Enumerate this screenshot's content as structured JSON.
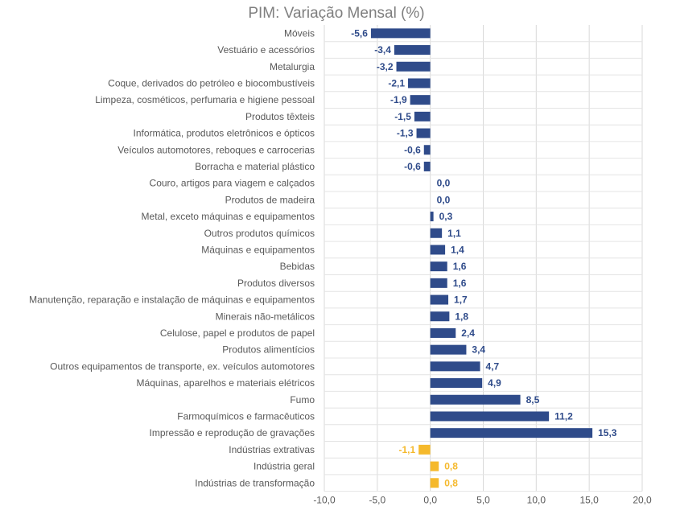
{
  "chart_data": {
    "type": "bar",
    "orientation": "horizontal",
    "title": "PIM: Variação Mensal (%)",
    "xlim": [
      -10,
      20
    ],
    "x_ticks": [
      "-10,0",
      "-5,0",
      "0,0",
      "5,0",
      "10,0",
      "15,0",
      "20,0"
    ],
    "grid": true,
    "colors": {
      "sector": "#2f4b8a",
      "aggregate": "#f5b92c"
    },
    "bars": [
      {
        "label": "Móveis",
        "value": -5.6,
        "text": "-5,6",
        "group": "sector"
      },
      {
        "label": "Vestuário e acessórios",
        "value": -3.4,
        "text": "-3,4",
        "group": "sector"
      },
      {
        "label": "Metalurgia",
        "value": -3.2,
        "text": "-3,2",
        "group": "sector"
      },
      {
        "label": "Coque, derivados do petróleo e biocombustíveis",
        "value": -2.1,
        "text": "-2,1",
        "group": "sector"
      },
      {
        "label": "Limpeza, cosméticos, perfumaria e higiene pessoal",
        "value": -1.9,
        "text": "-1,9",
        "group": "sector"
      },
      {
        "label": "Produtos têxteis",
        "value": -1.5,
        "text": "-1,5",
        "group": "sector"
      },
      {
        "label": "Informática, produtos eletrônicos e ópticos",
        "value": -1.3,
        "text": "-1,3",
        "group": "sector"
      },
      {
        "label": "Veículos automotores, reboques e carrocerias",
        "value": -0.6,
        "text": "-0,6",
        "group": "sector"
      },
      {
        "label": "Borracha e material plástico",
        "value": -0.6,
        "text": "-0,6",
        "group": "sector"
      },
      {
        "label": "Couro, artigos para viagem e calçados",
        "value": 0.0,
        "text": "0,0",
        "group": "sector"
      },
      {
        "label": "Produtos de madeira",
        "value": 0.0,
        "text": "0,0",
        "group": "sector"
      },
      {
        "label": "Metal, exceto máquinas e equipamentos",
        "value": 0.3,
        "text": "0,3",
        "group": "sector"
      },
      {
        "label": "Outros produtos químicos",
        "value": 1.1,
        "text": "1,1",
        "group": "sector"
      },
      {
        "label": "Máquinas e equipamentos",
        "value": 1.4,
        "text": "1,4",
        "group": "sector"
      },
      {
        "label": "Bebidas",
        "value": 1.6,
        "text": "1,6",
        "group": "sector"
      },
      {
        "label": "Produtos diversos",
        "value": 1.6,
        "text": "1,6",
        "group": "sector"
      },
      {
        "label": "Manutenção, reparação e instalação de máquinas e equipamentos",
        "value": 1.7,
        "text": "1,7",
        "group": "sector"
      },
      {
        "label": "Minerais não-metálicos",
        "value": 1.8,
        "text": "1,8",
        "group": "sector"
      },
      {
        "label": "Celulose, papel e produtos de papel",
        "value": 2.4,
        "text": "2,4",
        "group": "sector"
      },
      {
        "label": "Produtos alimentícios",
        "value": 3.4,
        "text": "3,4",
        "group": "sector"
      },
      {
        "label": "Outros equipamentos de transporte, ex. veículos automotores",
        "value": 4.7,
        "text": "4,7",
        "group": "sector"
      },
      {
        "label": "Máquinas, aparelhos e materiais elétricos",
        "value": 4.9,
        "text": "4,9",
        "group": "sector"
      },
      {
        "label": "Fumo",
        "value": 8.5,
        "text": "8,5",
        "group": "sector"
      },
      {
        "label": "Farmoquímicos e farmacêuticos",
        "value": 11.2,
        "text": "11,2",
        "group": "sector"
      },
      {
        "label": "Impressão e reprodução de gravações",
        "value": 15.3,
        "text": "15,3",
        "group": "sector"
      },
      {
        "label": "Indústrias extrativas",
        "value": -1.1,
        "text": "-1,1",
        "group": "aggregate"
      },
      {
        "label": "Indústria geral",
        "value": 0.8,
        "text": "0,8",
        "group": "aggregate"
      },
      {
        "label": "Indústrias de transformação",
        "value": 0.8,
        "text": "0,8",
        "group": "aggregate"
      }
    ]
  }
}
